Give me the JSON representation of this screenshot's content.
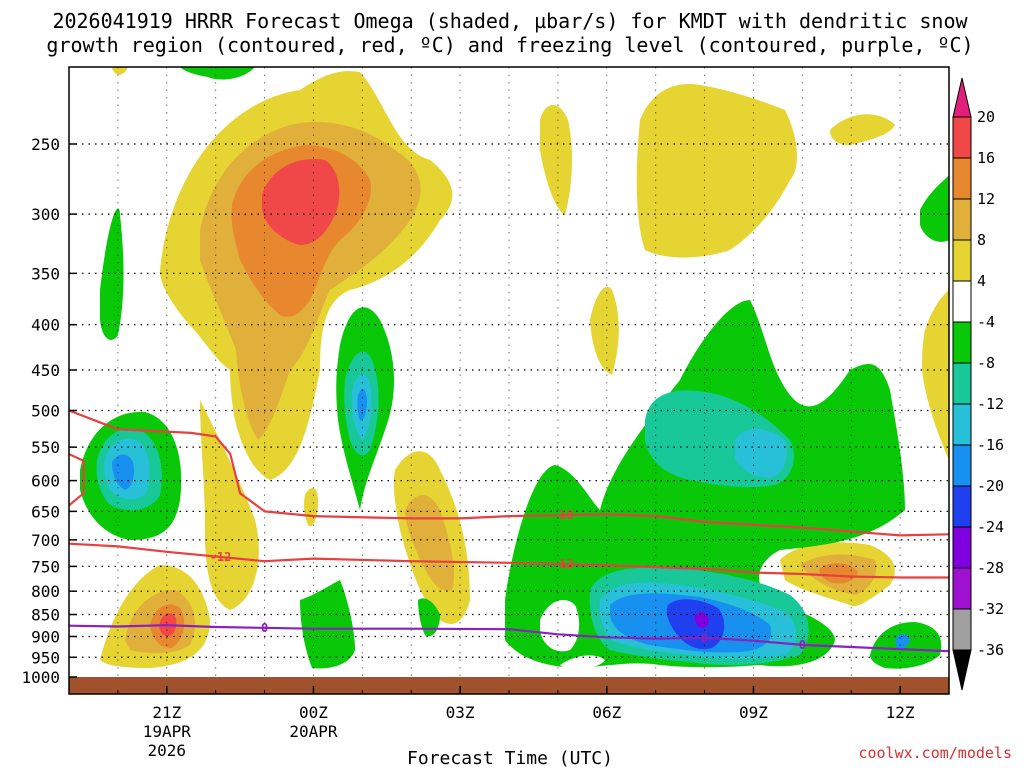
{
  "title": {
    "line1": "2026041919 HRRR Forecast Omega (shaded, µbar/s) for KMDT with dendritic snow",
    "line2": "growth region (contoured, red, ºC) and freezing level (contoured, purple, ºC)"
  },
  "credit": "coolwx.com/models",
  "colors": {
    "ground": "#a0522d",
    "red_contour": "#e84040",
    "purple_contour": "#8c1fbf",
    "shading": [
      "#e6d432",
      "#e0b03a",
      "#e8882e",
      "#f04848",
      "#08c808",
      "#18c898",
      "#28c0d8",
      "#1890f0",
      "#2040f0"
    ]
  },
  "chart_data": {
    "type": "heatmap",
    "title": "2026041919 HRRR Forecast Omega (shaded, µbar/s) for KMDT with dendritic snow growth region (contoured, red, ºC) and freezing level (contoured, purple, ºC)",
    "xlabel": "Forecast Time (UTC)",
    "ylabel": "",
    "x_ticks": [
      {
        "label": "21Z",
        "sub": [
          "19APR",
          "2026"
        ]
      },
      {
        "label": "00Z",
        "sub": [
          "20APR"
        ]
      },
      {
        "label": "03Z",
        "sub": []
      },
      {
        "label": "06Z",
        "sub": []
      },
      {
        "label": "09Z",
        "sub": []
      },
      {
        "label": "12Z",
        "sub": []
      }
    ],
    "x_hours": [
      21,
      24,
      27,
      30,
      33,
      36
    ],
    "xlim_hours": [
      19.0,
      37.0
    ],
    "y_ticks": [
      "250",
      "300",
      "350",
      "400",
      "450",
      "500",
      "550",
      "600",
      "650",
      "700",
      "750",
      "800",
      "850",
      "900",
      "950",
      "1000"
    ],
    "y_values_hPa": [
      250,
      300,
      350,
      400,
      450,
      500,
      550,
      600,
      650,
      700,
      750,
      800,
      850,
      900,
      950,
      1000
    ],
    "ylim_hPa": [
      200,
      1010
    ],
    "grid": true,
    "colorbar": {
      "levels": [
        "20",
        "16",
        "12",
        "8",
        "4",
        "-4",
        "-8",
        "-12",
        "-16",
        "-20",
        "-24",
        "-28",
        "-32",
        "-36"
      ],
      "bins": [
        {
          "range": [
            16,
            20
          ],
          "color": "#f04848"
        },
        {
          "range": [
            12,
            16
          ],
          "color": "#e8882e"
        },
        {
          "range": [
            8,
            12
          ],
          "color": "#e0b03a"
        },
        {
          "range": [
            4,
            8
          ],
          "color": "#e6d432"
        },
        {
          "range": [
            -4,
            4
          ],
          "color": "#ffffff"
        },
        {
          "range": [
            -8,
            -4
          ],
          "color": "#08c808"
        },
        {
          "range": [
            -12,
            -8
          ],
          "color": "#18c898"
        },
        {
          "range": [
            -16,
            -12
          ],
          "color": "#28c0d8"
        },
        {
          "range": [
            -20,
            -16
          ],
          "color": "#1890f0"
        },
        {
          "range": [
            -24,
            -20
          ],
          "color": "#2040f0"
        },
        {
          "range": [
            -28,
            -24
          ],
          "color": "#8000e0"
        },
        {
          "range": [
            -32,
            -28
          ],
          "color": "#a010d0"
        },
        {
          "range": [
            -36,
            -32
          ],
          "color": "#a0a0a0"
        }
      ],
      "top_arrow_color": "#e0207a",
      "bottom_arrow_color": "#000000"
    },
    "contour_lines": [
      {
        "label": "-18",
        "color": "#e84040",
        "points": [
          [
            19.0,
            500
          ],
          [
            20.0,
            525
          ],
          [
            21.5,
            530
          ],
          [
            22.0,
            535
          ],
          [
            22.3,
            560
          ],
          [
            22.5,
            620
          ],
          [
            23.0,
            650
          ],
          [
            24.0,
            658
          ],
          [
            26.0,
            662
          ],
          [
            27.0,
            662
          ],
          [
            28.0,
            658
          ],
          [
            30.0,
            655
          ],
          [
            31.0,
            658
          ],
          [
            32.0,
            668
          ],
          [
            34.0,
            678
          ],
          [
            35.0,
            685
          ],
          [
            36.0,
            692
          ],
          [
            37.0,
            690
          ]
        ]
      },
      {
        "label": "-12",
        "color": "#e84040",
        "points": [
          [
            19.0,
            707
          ],
          [
            20.0,
            712
          ],
          [
            21.0,
            722
          ],
          [
            23.0,
            740
          ],
          [
            24.0,
            735
          ],
          [
            26.0,
            740
          ],
          [
            28.0,
            743
          ],
          [
            30.0,
            748
          ],
          [
            32.0,
            755
          ],
          [
            33.0,
            762
          ],
          [
            34.0,
            765
          ],
          [
            35.0,
            770
          ],
          [
            36.0,
            772
          ],
          [
            37.0,
            772
          ]
        ]
      },
      {
        "label": "",
        "color": "#e84040",
        "points": [
          [
            19.0,
            560
          ],
          [
            19.3,
            570
          ],
          [
            19.3,
            620
          ],
          [
            19.0,
            640
          ]
        ]
      },
      {
        "label": "0",
        "color": "#8c1fbf",
        "points": [
          [
            19.0,
            875
          ],
          [
            20.0,
            877
          ],
          [
            21.0,
            874
          ],
          [
            22.0,
            878
          ],
          [
            24.0,
            882
          ],
          [
            26.0,
            882
          ],
          [
            28.0,
            883
          ],
          [
            29.0,
            895
          ],
          [
            30.0,
            902
          ],
          [
            31.0,
            905
          ],
          [
            32.0,
            903
          ],
          [
            33.0,
            910
          ],
          [
            34.0,
            920
          ],
          [
            35.0,
            925
          ],
          [
            36.0,
            930
          ],
          [
            37.0,
            935
          ]
        ]
      }
    ]
  }
}
